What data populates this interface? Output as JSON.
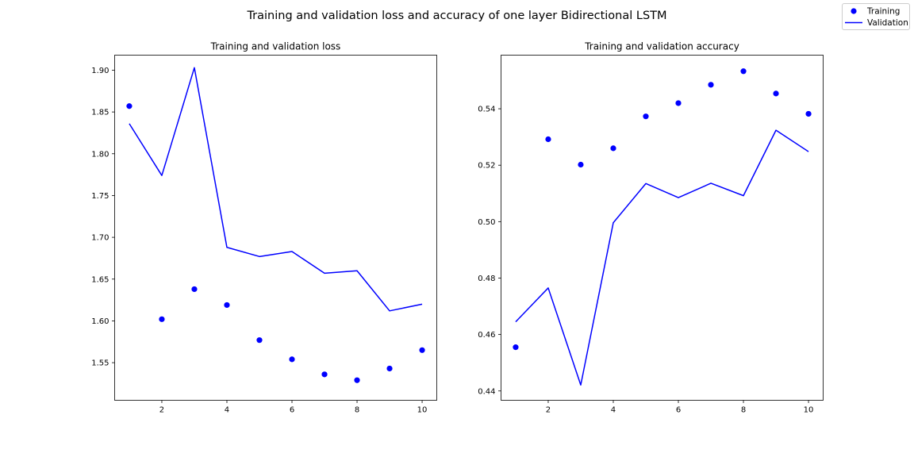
{
  "figure": {
    "suptitle": "Training and validation loss and accuracy of one layer Bidirectional LSTM"
  },
  "legend": {
    "placement": "top-right",
    "entries": [
      {
        "label": "Training",
        "marker": "dot"
      },
      {
        "label": "Validation",
        "marker": "line"
      }
    ]
  },
  "colors": {
    "series": "#0000ff",
    "axes": "#000000",
    "legend_border": "#cccccc"
  },
  "chart_data": [
    {
      "type": "line",
      "title": "Training and validation loss",
      "xlabel": "",
      "ylabel": "",
      "xlim": [
        0.55,
        10.45
      ],
      "ylim": [
        1.505,
        1.918
      ],
      "xticks": [
        2,
        4,
        6,
        8,
        10
      ],
      "yticks": [
        1.55,
        1.6,
        1.65,
        1.7,
        1.75,
        1.8,
        1.85,
        1.9
      ],
      "ytick_format": 2,
      "grid": false,
      "x": [
        1,
        2,
        3,
        4,
        5,
        6,
        7,
        8,
        9,
        10
      ],
      "series": [
        {
          "name": "Training",
          "style": "dots",
          "values": [
            1.857,
            1.602,
            1.638,
            1.619,
            1.577,
            1.554,
            1.536,
            1.529,
            1.543,
            1.565
          ]
        },
        {
          "name": "Validation",
          "style": "line",
          "values": [
            1.836,
            1.774,
            1.903,
            1.688,
            1.677,
            1.683,
            1.657,
            1.66,
            1.612,
            1.62
          ]
        }
      ]
    },
    {
      "type": "line",
      "title": "Training and validation accuracy",
      "xlabel": "",
      "ylabel": "",
      "xlim": [
        0.55,
        10.45
      ],
      "ylim": [
        0.4367,
        0.559
      ],
      "xticks": [
        2,
        4,
        6,
        8,
        10
      ],
      "yticks": [
        0.44,
        0.46,
        0.48,
        0.5,
        0.52,
        0.54
      ],
      "ytick_format": 2,
      "grid": false,
      "x": [
        1,
        2,
        3,
        4,
        5,
        6,
        7,
        8,
        9,
        10
      ],
      "series": [
        {
          "name": "Training",
          "style": "dots",
          "values": [
            0.4555,
            0.5292,
            0.5202,
            0.526,
            0.5373,
            0.542,
            0.5485,
            0.5533,
            0.5454,
            0.5382
          ]
        },
        {
          "name": "Validation",
          "style": "line",
          "values": [
            0.4645,
            0.4765,
            0.4421,
            0.4996,
            0.5135,
            0.5085,
            0.5136,
            0.5092,
            0.5324,
            0.5248
          ]
        }
      ]
    }
  ]
}
